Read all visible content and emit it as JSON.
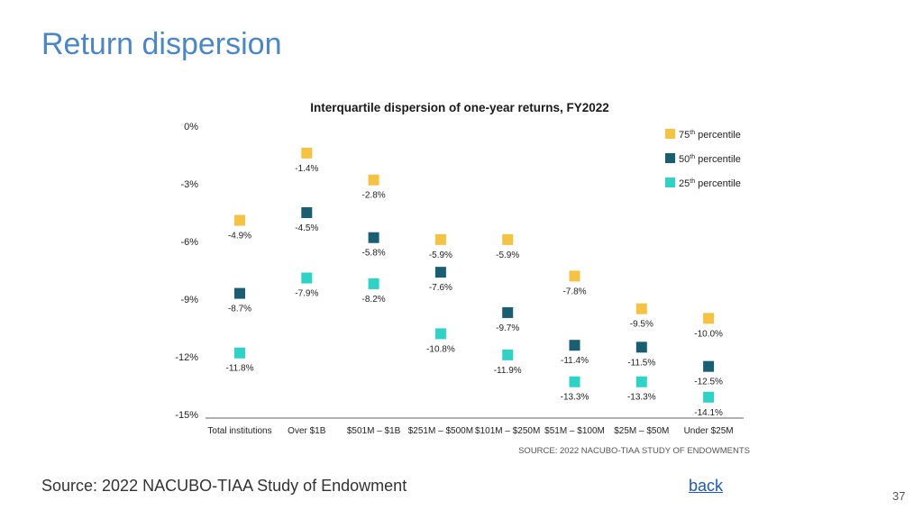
{
  "slide": {
    "title": "Return dispersion",
    "source_note": "Source: 2022 NACUBO-TIAA Study of Endowment",
    "back_link": "back",
    "page_number": "37"
  },
  "chart_data": {
    "type": "scatter",
    "title": "Interquartile dispersion of one-year returns, FY2022",
    "source": "SOURCE: 2022 NACUBO-TIAA STUDY OF ENDOWMENTS",
    "xlabel": "",
    "ylabel": "",
    "ylim": [
      -15,
      0
    ],
    "yticks": [
      0,
      -3,
      -6,
      -9,
      -12,
      -15
    ],
    "ytick_labels": [
      "0%",
      "-3%",
      "-6%",
      "-9%",
      "-12%",
      "-15%"
    ],
    "categories": [
      "Total institutions",
      "Over $1B",
      "$501M – $1B",
      "$251M – $500M",
      "$101M – $250M",
      "$51M – $100M",
      "$25M – $50M",
      "Under $25M"
    ],
    "grid": false,
    "legend_position": "top-right",
    "series": [
      {
        "name": "75th percentile",
        "color": "#f5c242",
        "values": [
          -4.9,
          -1.4,
          -2.8,
          -5.9,
          -5.9,
          -7.8,
          -9.5,
          -10.0
        ],
        "labels": [
          "-4.9%",
          "-1.4%",
          "-2.8%",
          "-5.9%",
          "-5.9%",
          "-7.8%",
          "-9.5%",
          "-10.0%"
        ]
      },
      {
        "name": "50th percentile",
        "color": "#1a5e72",
        "values": [
          -8.7,
          -4.5,
          -5.8,
          -7.6,
          -9.7,
          -11.4,
          -11.5,
          -12.5
        ],
        "labels": [
          "-8.7%",
          "-4.5%",
          "-5.8%",
          "-7.6%",
          "-9.7%",
          "-11.4%",
          "-11.5%",
          "-12.5%"
        ]
      },
      {
        "name": "25th percentile",
        "color": "#2dd3c4",
        "values": [
          -11.8,
          -7.9,
          -8.2,
          -10.8,
          -11.9,
          -13.3,
          -13.3,
          -14.1
        ],
        "labels": [
          "-11.8%",
          "-7.9%",
          "-8.2%",
          "-10.8%",
          "-11.9%",
          "-13.3%",
          "-13.3%",
          "-14.1%"
        ]
      }
    ],
    "legend_labels": [
      {
        "base": "75",
        "sup": "th",
        "rest": " percentile"
      },
      {
        "base": "50",
        "sup": "th",
        "rest": " percentile"
      },
      {
        "base": "25",
        "sup": "th",
        "rest": " percentile"
      }
    ]
  }
}
